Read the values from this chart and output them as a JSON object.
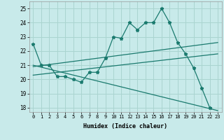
{
  "xlabel": "Humidex (Indice chaleur)",
  "background_color": "#c8eaea",
  "grid_color": "#aad4d0",
  "line_color": "#1a7a6e",
  "xlim": [
    -0.5,
    23.5
  ],
  "ylim": [
    17.7,
    25.5
  ],
  "yticks": [
    18,
    19,
    20,
    21,
    22,
    23,
    24,
    25
  ],
  "xticks": [
    0,
    1,
    2,
    3,
    4,
    5,
    6,
    7,
    8,
    9,
    10,
    11,
    12,
    13,
    14,
    15,
    16,
    17,
    18,
    19,
    20,
    21,
    22,
    23
  ],
  "main_series": [
    [
      0,
      22.5
    ],
    [
      1,
      21.0
    ],
    [
      2,
      21.0
    ],
    [
      3,
      20.2
    ],
    [
      4,
      20.2
    ],
    [
      5,
      20.0
    ],
    [
      6,
      19.8
    ],
    [
      7,
      20.5
    ],
    [
      8,
      20.5
    ],
    [
      9,
      21.5
    ],
    [
      10,
      23.0
    ],
    [
      11,
      22.9
    ],
    [
      12,
      24.0
    ],
    [
      13,
      23.5
    ],
    [
      14,
      24.0
    ],
    [
      15,
      24.0
    ],
    [
      16,
      25.0
    ],
    [
      17,
      24.0
    ],
    [
      18,
      22.6
    ],
    [
      19,
      21.8
    ],
    [
      20,
      20.8
    ],
    [
      21,
      19.4
    ],
    [
      22,
      18.0
    ]
  ],
  "reg_line1": [
    [
      0,
      20.9
    ],
    [
      23,
      22.6
    ]
  ],
  "reg_line2": [
    [
      0,
      20.3
    ],
    [
      23,
      21.8
    ]
  ],
  "reg_line3": [
    [
      0,
      21.0
    ],
    [
      23,
      17.8
    ]
  ]
}
